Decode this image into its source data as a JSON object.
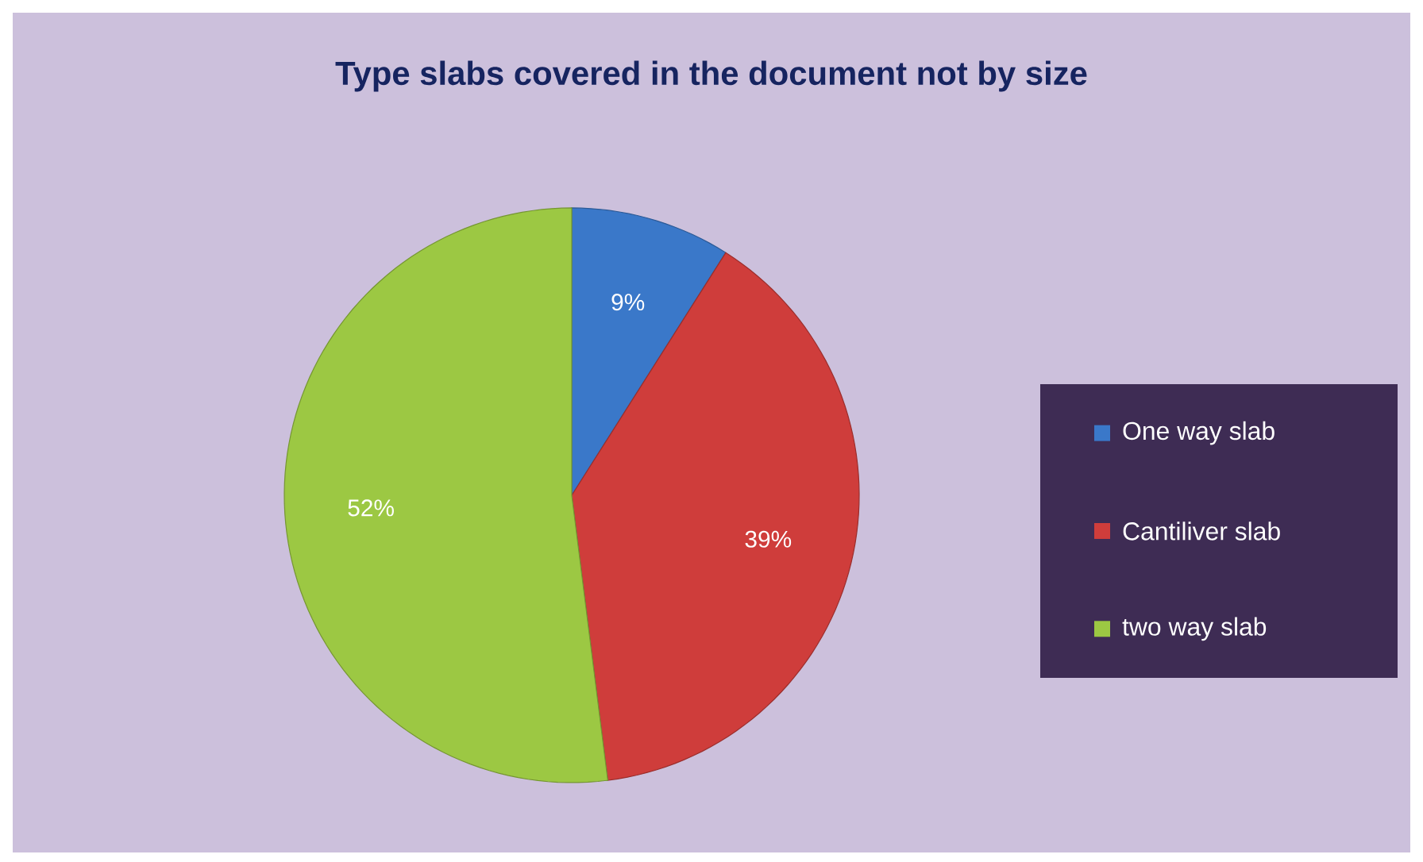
{
  "chart_data": {
    "type": "pie",
    "title": "Type slabs covered in the document not by size",
    "categories": [
      "One way slab",
      "Cantiliver slab",
      "two way slab"
    ],
    "values": [
      9,
      39,
      52
    ],
    "value_labels": [
      "9%",
      "39%",
      "52%"
    ],
    "colors": [
      "#3a78c9",
      "#cf3d3b",
      "#9cc843"
    ],
    "legend": "right"
  }
}
